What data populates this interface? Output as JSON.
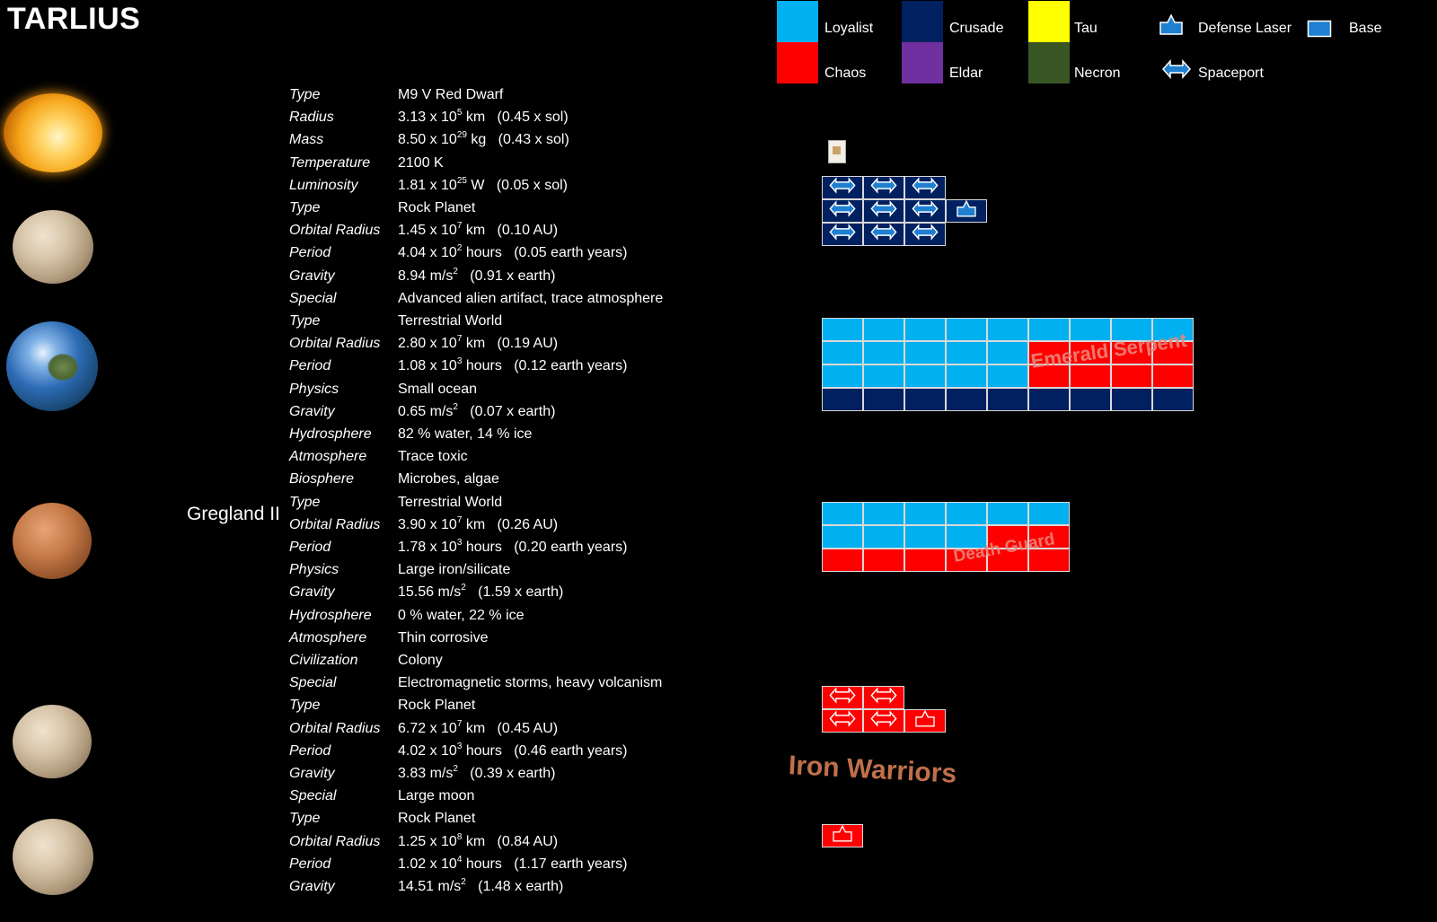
{
  "title": "TARLIUS",
  "planet_label": "Gregland II",
  "colors": {
    "loyalist": "#00b0f0",
    "crusade": "#002060",
    "tau": "#ffff00",
    "chaos": "#ff0000",
    "eldar": "#7030a0",
    "necron": "#375623",
    "faction_text": "#c0704a"
  },
  "legend": {
    "loyalist": "Loyalist",
    "crusade": "Crusade",
    "tau": "Tau",
    "chaos": "Chaos",
    "eldar": "Eldar",
    "necron": "Necron",
    "defense_laser": "Defense Laser",
    "base": "Base",
    "spaceport": "Spaceport"
  },
  "stats": [
    {
      "label": "Type",
      "value": "M9 V Red Dwarf"
    },
    {
      "label": "Radius",
      "pre": "3.13 x 10",
      "sup": "5",
      "post": " km   (0.45 x sol)"
    },
    {
      "label": "Mass",
      "pre": "8.50 x 10",
      "sup": "29",
      "post": " kg   (0.43 x sol)"
    },
    {
      "label": "Temperature",
      "value": "2100 K"
    },
    {
      "label": "Luminosity",
      "pre": "1.81 x 10",
      "sup": "25",
      "post": " W   (0.05 x sol)"
    },
    {
      "label": "Type",
      "value": "Rock Planet"
    },
    {
      "label": "Orbital Radius",
      "pre": "1.45 x 10",
      "sup": "7",
      "post": " km   (0.10 AU)"
    },
    {
      "label": "Period",
      "pre": "4.04 x 10",
      "sup": "2",
      "post": " hours   (0.05 earth years)"
    },
    {
      "label": "Gravity",
      "pre": "8.94 m/s",
      "sup": "2",
      "post": "   (0.91 x earth)"
    },
    {
      "label": "Special",
      "value": "Advanced alien artifact, trace atmosphere"
    },
    {
      "label": "Type",
      "value": "Terrestrial World"
    },
    {
      "label": "Orbital Radius",
      "pre": "2.80 x 10",
      "sup": "7",
      "post": " km   (0.19 AU)"
    },
    {
      "label": "Period",
      "pre": "1.08 x 10",
      "sup": "3",
      "post": " hours   (0.12 earth years)"
    },
    {
      "label": "Physics",
      "value": "Small ocean"
    },
    {
      "label": "Gravity",
      "pre": "0.65 m/s",
      "sup": "2",
      "post": "   (0.07 x earth)"
    },
    {
      "label": "Hydrosphere",
      "value": "82 % water, 14 % ice"
    },
    {
      "label": "Atmosphere",
      "value": "Trace toxic"
    },
    {
      "label": "Biosphere",
      "value": "Microbes, algae"
    },
    {
      "label": "Type",
      "value": "Terrestrial World"
    },
    {
      "label": "Orbital Radius",
      "pre": "3.90 x 10",
      "sup": "7",
      "post": " km   (0.26 AU)"
    },
    {
      "label": "Period",
      "pre": "1.78 x 10",
      "sup": "3",
      "post": " hours   (0.20 earth years)"
    },
    {
      "label": "Physics",
      "value": "Large iron/silicate"
    },
    {
      "label": "Gravity",
      "pre": "15.56 m/s",
      "sup": "2",
      "post": "   (1.59 x earth)"
    },
    {
      "label": "Hydrosphere",
      "value": "0 % water, 22 % ice"
    },
    {
      "label": "Atmosphere",
      "value": "Thin corrosive"
    },
    {
      "label": "Civilization",
      "value": "Colony"
    },
    {
      "label": "Special",
      "value": "Electromagnetic storms, heavy volcanism"
    },
    {
      "label": "Type",
      "value": "Rock Planet"
    },
    {
      "label": "Orbital Radius",
      "pre": "6.72 x 10",
      "sup": "7",
      "post": " km   (0.45 AU)"
    },
    {
      "label": "Period",
      "pre": "4.02 x 10",
      "sup": "3",
      "post": " hours   (0.46 earth years)"
    },
    {
      "label": "Gravity",
      "pre": "3.83 m/s",
      "sup": "2",
      "post": "   (0.39 x earth)"
    },
    {
      "label": "Special",
      "value": "Large moon"
    },
    {
      "label": "Type",
      "value": "Rock Planet"
    },
    {
      "label": "Orbital Radius",
      "pre": "1.25 x 10",
      "sup": "8",
      "post": " km   (0.84 AU)"
    },
    {
      "label": "Period",
      "pre": "1.02 x 10",
      "sup": "4",
      "post": " hours   (1.17 earth years)"
    },
    {
      "label": "Gravity",
      "pre": "14.51 m/s",
      "sup": "2",
      "post": "   (1.48 x earth)"
    }
  ],
  "faction_tags": {
    "emerald_serpent": "Emerald Serpent",
    "death_guard": "Death Guard",
    "iron_warriors": "Iron Warriors"
  },
  "grids": {
    "planet1": [
      [
        "crusade:spaceport",
        "crusade:spaceport",
        "crusade:spaceport",
        "none"
      ],
      [
        "crusade:spaceport",
        "crusade:spaceport",
        "crusade:spaceport",
        "crusade:laser"
      ],
      [
        "crusade:spaceport",
        "crusade:spaceport",
        "crusade:spaceport",
        "none"
      ]
    ],
    "planet2": [
      [
        "loyalist",
        "loyalist",
        "loyalist",
        "loyalist",
        "loyalist",
        "loyalist",
        "loyalist",
        "loyalist",
        "loyalist"
      ],
      [
        "loyalist",
        "loyalist",
        "loyalist",
        "loyalist",
        "loyalist",
        "chaos",
        "chaos",
        "chaos",
        "chaos"
      ],
      [
        "loyalist",
        "loyalist",
        "loyalist",
        "loyalist",
        "loyalist",
        "chaos",
        "chaos",
        "chaos",
        "chaos"
      ],
      [
        "crusade",
        "crusade",
        "crusade",
        "crusade",
        "crusade",
        "crusade",
        "crusade",
        "crusade",
        "crusade"
      ]
    ],
    "planet3": [
      [
        "loyalist",
        "loyalist",
        "loyalist",
        "loyalist",
        "loyalist",
        "loyalist"
      ],
      [
        "loyalist",
        "loyalist",
        "loyalist",
        "loyalist",
        "chaos",
        "chaos"
      ],
      [
        "chaos",
        "chaos",
        "chaos",
        "chaos",
        "chaos",
        "chaos"
      ]
    ],
    "planet4": [
      [
        "chaos:spaceport",
        "chaos:spaceport",
        "none"
      ],
      [
        "chaos:spaceport",
        "chaos:spaceport",
        "chaos:laser"
      ]
    ],
    "planet5": [
      [
        "chaos:laser"
      ]
    ]
  }
}
